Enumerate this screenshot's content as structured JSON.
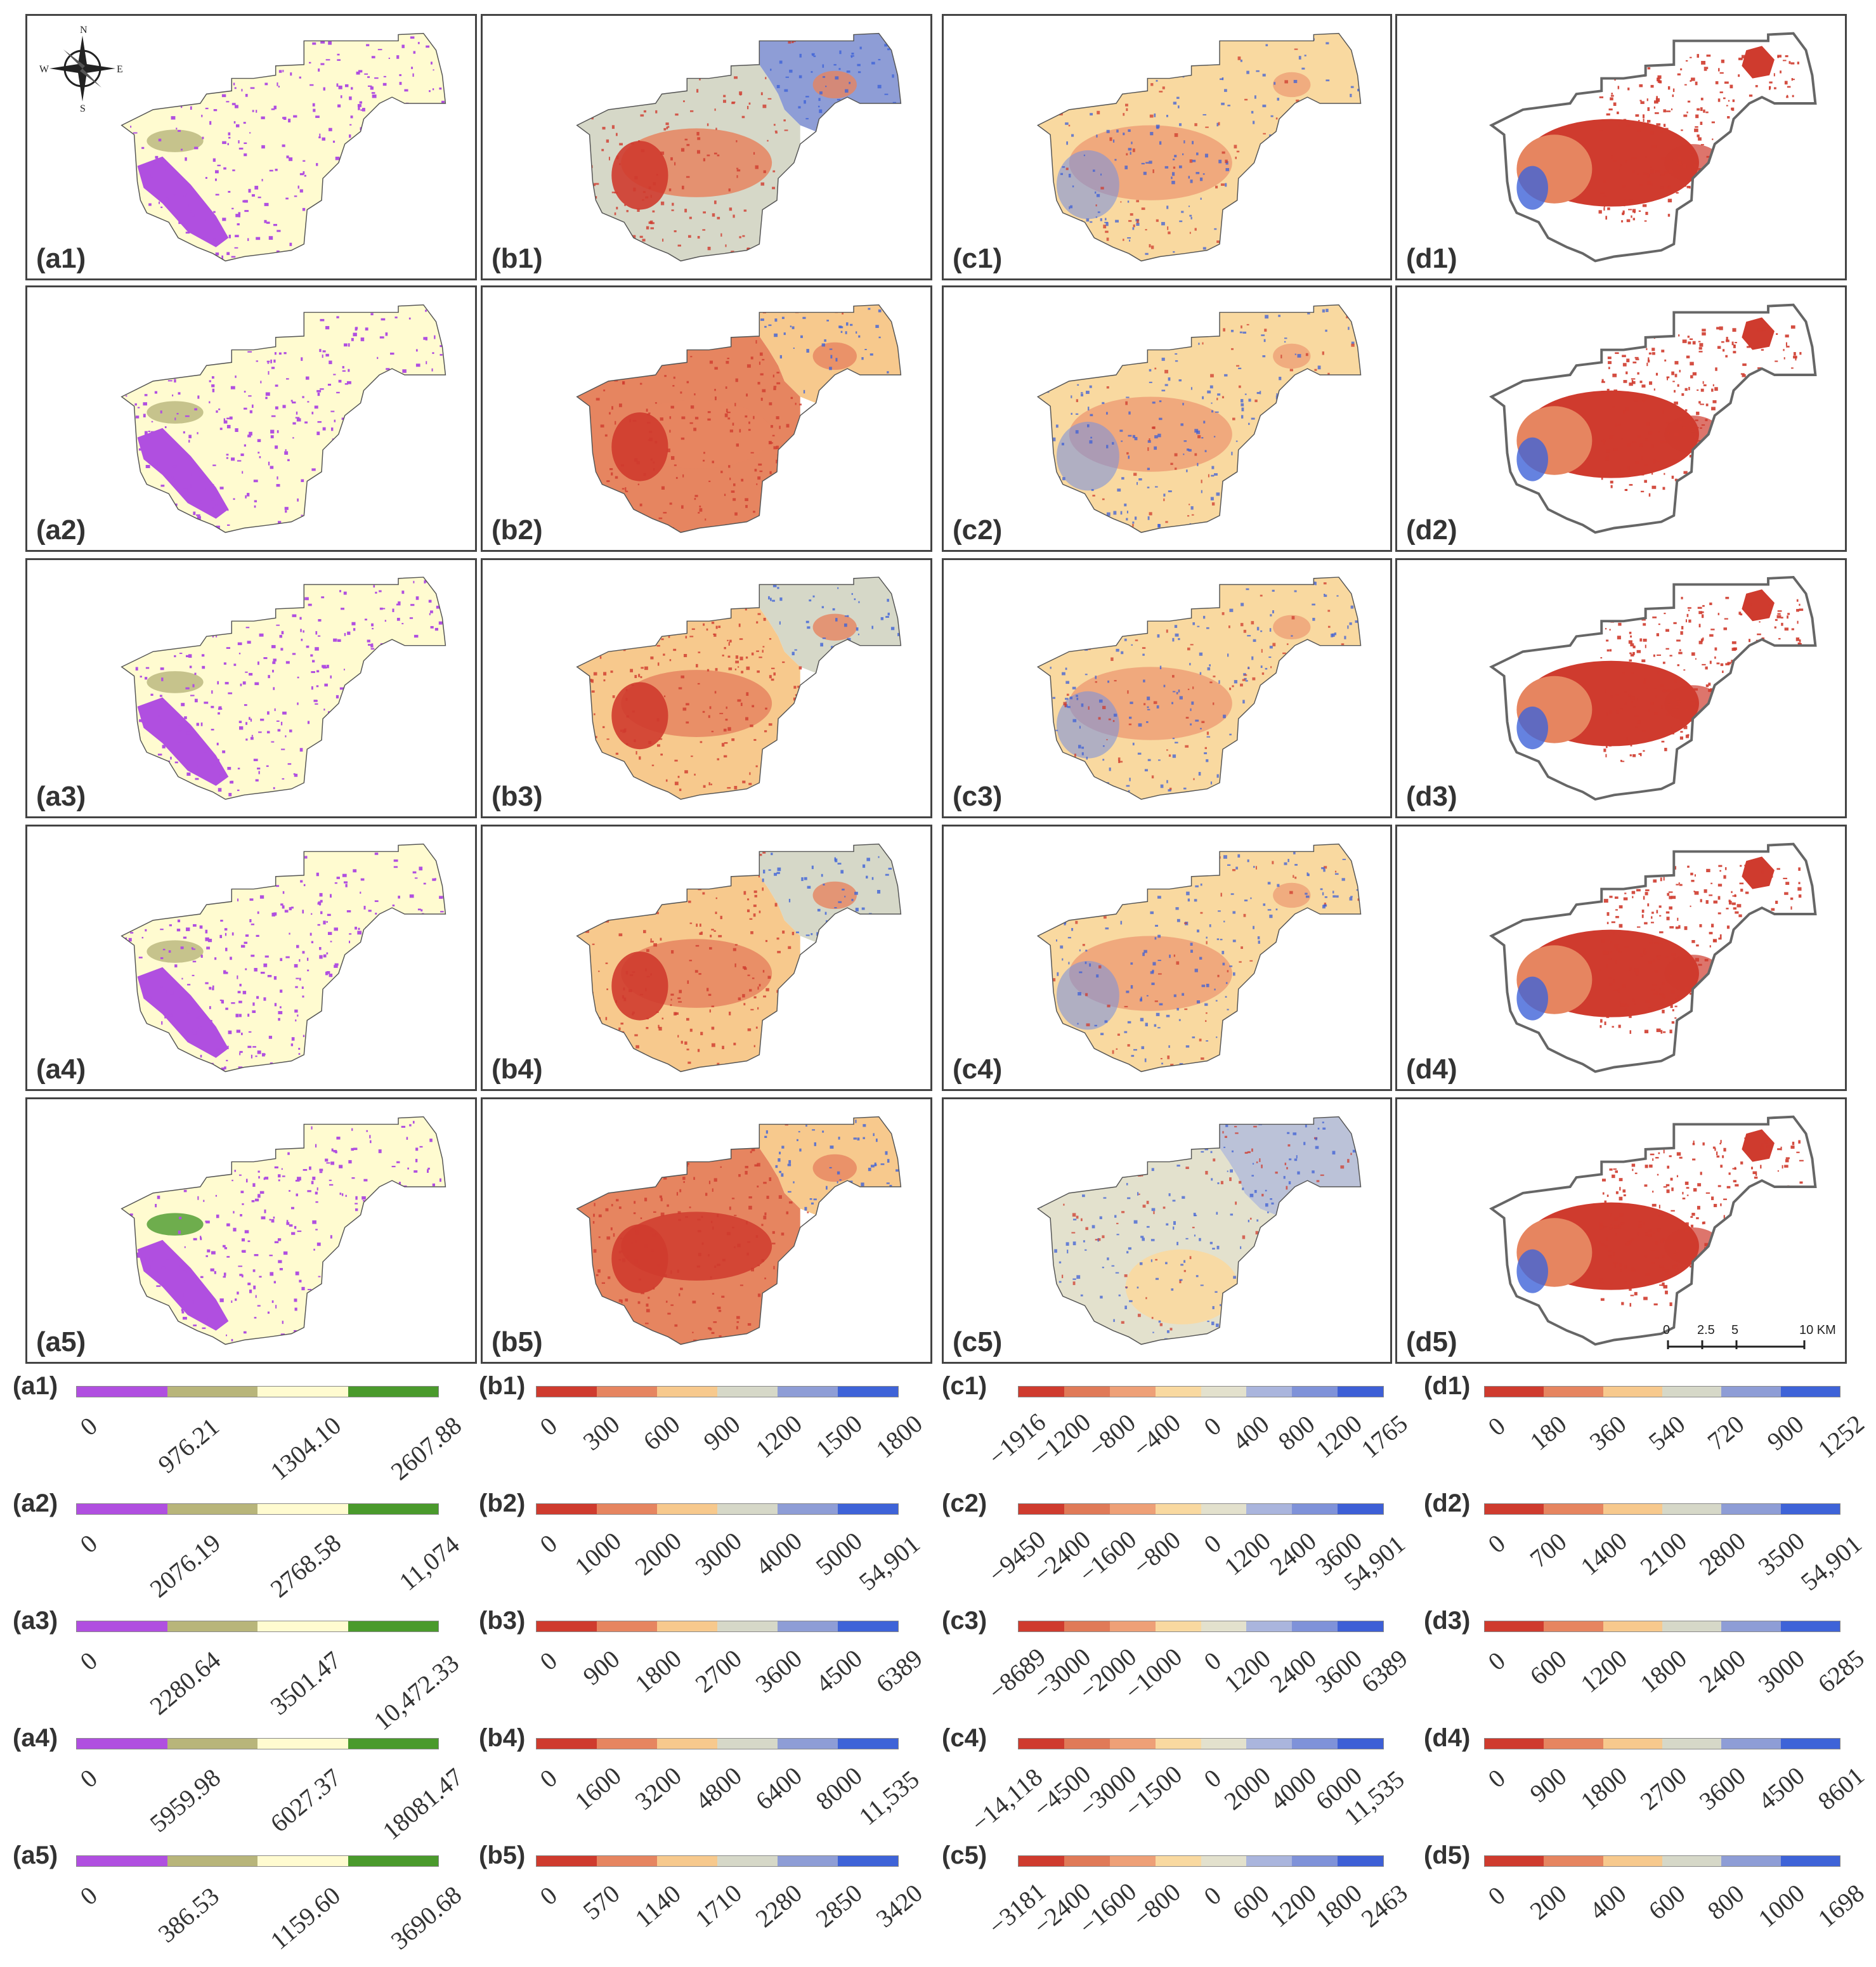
{
  "compass": {
    "n": "N",
    "s": "S",
    "e": "E",
    "w": "W"
  },
  "scale": {
    "ticks": [
      "0",
      "2.5",
      "5",
      "10 KM"
    ]
  },
  "columns": [
    {
      "key": "a",
      "scheme": "a",
      "palette": [
        "#b04fe0",
        "#b8b57a",
        "#fffbd0",
        "#4a9a2c"
      ],
      "bg": "#fef8cf",
      "outline": true
    },
    {
      "key": "b",
      "scheme": "b",
      "palette": [
        "#cf3b2e",
        "#e68560",
        "#f7c98d",
        "#d6d8c8",
        "#8e9dd6",
        "#3e63d8"
      ],
      "bg": "#f7c98d",
      "outline": true
    },
    {
      "key": "c",
      "scheme": "c",
      "palette": [
        "#cf3b2e",
        "#e07a58",
        "#eea077",
        "#f9d9a0",
        "#e3e1cd",
        "#aab5dd",
        "#7f92d9",
        "#3d5fd6"
      ],
      "bg": "#f9d9a0",
      "outline": true
    },
    {
      "key": "d",
      "scheme": "d",
      "palette": [
        "#cf3b2e",
        "#e68560",
        "#f7c98d",
        "#d6d8c8",
        "#8e9dd6",
        "#3e63d8"
      ],
      "bg": "#ffffff",
      "outline": true
    }
  ],
  "panels": [
    [
      {
        "label": "(a1)",
        "fill": "mostly pale, purple in SW"
      },
      {
        "label": "(b1)",
        "fill": "blue north, orange south"
      },
      {
        "label": "(c1)"
      },
      {
        "label": "(d1)"
      }
    ],
    [
      {
        "label": "(a2)"
      },
      {
        "label": "(b2)"
      },
      {
        "label": "(c2)"
      },
      {
        "label": "(d2)"
      }
    ],
    [
      {
        "label": "(a3)"
      },
      {
        "label": "(b3)"
      },
      {
        "label": "(c3)"
      },
      {
        "label": "(d3)"
      }
    ],
    [
      {
        "label": "(a4)"
      },
      {
        "label": "(b4)"
      },
      {
        "label": "(c4)"
      },
      {
        "label": "(d4)"
      }
    ],
    [
      {
        "label": "(a5)"
      },
      {
        "label": "(b5)"
      },
      {
        "label": "(c5)"
      },
      {
        "label": "(d5)"
      }
    ]
  ],
  "legends": [
    [
      {
        "label": "(a1)",
        "ticks": [
          "0",
          "976.21",
          "1304.10",
          "2607.88"
        ]
      },
      {
        "label": "(b1)",
        "ticks": [
          "0",
          "300",
          "600",
          "900",
          "1200",
          "1500",
          "1800"
        ]
      },
      {
        "label": "(c1)",
        "ticks": [
          "−1916",
          "−1200",
          "−800",
          "−400",
          "0",
          "400",
          "800",
          "1200",
          "1765"
        ]
      },
      {
        "label": "(d1)",
        "ticks": [
          "0",
          "180",
          "360",
          "540",
          "720",
          "900",
          "1252"
        ]
      }
    ],
    [
      {
        "label": "(a2)",
        "ticks": [
          "0",
          "2076.19",
          "2768.58",
          "11,074"
        ]
      },
      {
        "label": "(b2)",
        "ticks": [
          "0",
          "1000",
          "2000",
          "3000",
          "4000",
          "5000",
          "54,901"
        ]
      },
      {
        "label": "(c2)",
        "ticks": [
          "−9450",
          "−2400",
          "−1600",
          "−800",
          "0",
          "1200",
          "2400",
          "3600",
          "54,901"
        ]
      },
      {
        "label": "(d2)",
        "ticks": [
          "0",
          "700",
          "1400",
          "2100",
          "2800",
          "3500",
          "54,901"
        ]
      }
    ],
    [
      {
        "label": "(a3)",
        "ticks": [
          "0",
          "2280.64",
          "3501.47",
          "10,472.33"
        ]
      },
      {
        "label": "(b3)",
        "ticks": [
          "0",
          "900",
          "1800",
          "2700",
          "3600",
          "4500",
          "6389"
        ]
      },
      {
        "label": "(c3)",
        "ticks": [
          "−8689",
          "−3000",
          "−2000",
          "−1000",
          "0",
          "1200",
          "2400",
          "3600",
          "6389"
        ]
      },
      {
        "label": "(d3)",
        "ticks": [
          "0",
          "600",
          "1200",
          "1800",
          "2400",
          "3000",
          "6285"
        ]
      }
    ],
    [
      {
        "label": "(a4)",
        "ticks": [
          "0",
          "5959.98",
          "6027.37",
          "18081.47"
        ]
      },
      {
        "label": "(b4)",
        "ticks": [
          "0",
          "1600",
          "3200",
          "4800",
          "6400",
          "8000",
          "11,535"
        ]
      },
      {
        "label": "(c4)",
        "ticks": [
          "−14,118",
          "−4500",
          "−3000",
          "−1500",
          "0",
          "2000",
          "4000",
          "6000",
          "11,535"
        ]
      },
      {
        "label": "(d4)",
        "ticks": [
          "0",
          "900",
          "1800",
          "2700",
          "3600",
          "4500",
          "8601"
        ]
      }
    ],
    [
      {
        "label": "(a5)",
        "ticks": [
          "0",
          "386.53",
          "1159.60",
          "3690.68"
        ]
      },
      {
        "label": "(b5)",
        "ticks": [
          "0",
          "570",
          "1140",
          "1710",
          "2280",
          "2850",
          "3420"
        ]
      },
      {
        "label": "(c5)",
        "ticks": [
          "−3181",
          "−2400",
          "−1600",
          "−800",
          "0",
          "600",
          "1200",
          "1800",
          "2463"
        ]
      },
      {
        "label": "(d5)",
        "ticks": [
          "0",
          "200",
          "400",
          "600",
          "800",
          "1000",
          "1698"
        ]
      }
    ]
  ]
}
